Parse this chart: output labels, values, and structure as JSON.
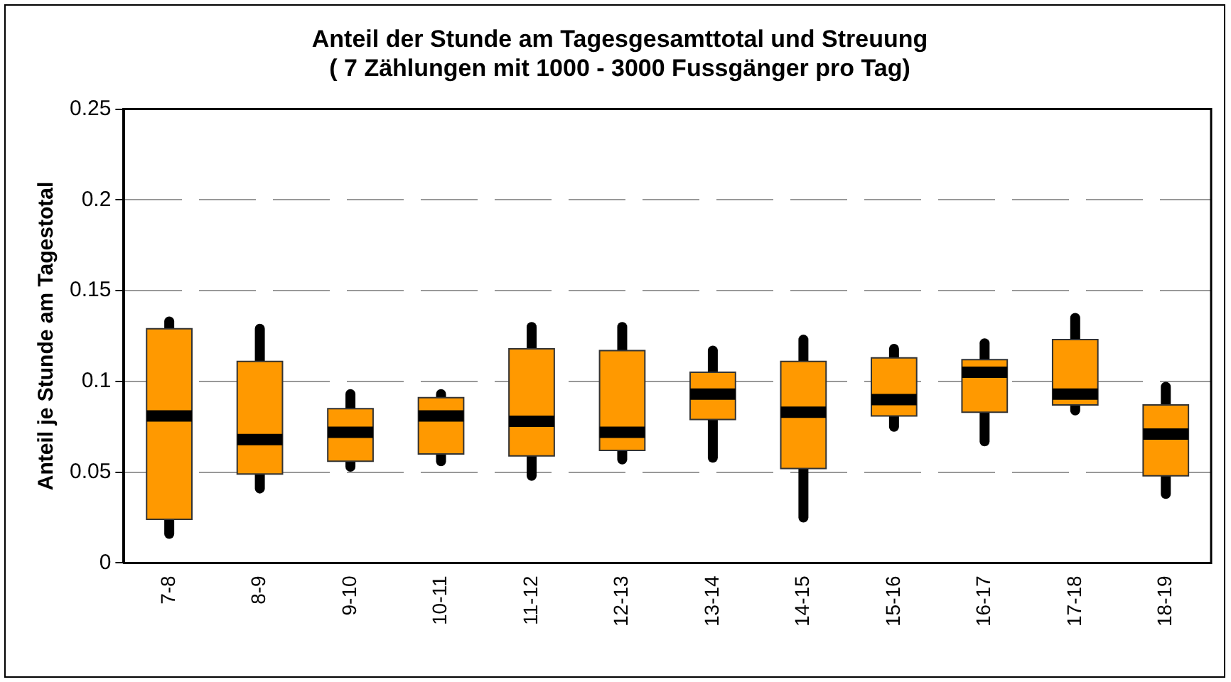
{
  "chart_data": {
    "type": "box",
    "title": "Anteil der Stunde am Tagesgesamttotal und Streuung",
    "subtitle": "( 7 Zählungen mit 1000 - 3000 Fussgänger pro Tag)",
    "ylabel": "Anteil je Stunde am Tagestotal",
    "categories": [
      "7-8",
      "8-9",
      "9-10",
      "10-11",
      "11-12",
      "12-13",
      "13-14",
      "14-15",
      "15-16",
      "16-17",
      "17-18",
      "18-19"
    ],
    "series": [
      {
        "color": "#ff9900",
        "boxes": [
          {
            "low": 0.016,
            "q1": 0.024,
            "median": 0.081,
            "q3": 0.129,
            "high": 0.133
          },
          {
            "low": 0.041,
            "q1": 0.049,
            "median": 0.068,
            "q3": 0.111,
            "high": 0.129
          },
          {
            "low": 0.053,
            "q1": 0.056,
            "median": 0.072,
            "q3": 0.085,
            "high": 0.093
          },
          {
            "low": 0.056,
            "q1": 0.06,
            "median": 0.081,
            "q3": 0.091,
            "high": 0.093
          },
          {
            "low": 0.048,
            "q1": 0.059,
            "median": 0.078,
            "q3": 0.118,
            "high": 0.13
          },
          {
            "low": 0.057,
            "q1": 0.062,
            "median": 0.072,
            "q3": 0.117,
            "high": 0.13
          },
          {
            "low": 0.058,
            "q1": 0.079,
            "median": 0.093,
            "q3": 0.105,
            "high": 0.117
          },
          {
            "low": 0.025,
            "q1": 0.052,
            "median": 0.083,
            "q3": 0.111,
            "high": 0.123
          },
          {
            "low": 0.075,
            "q1": 0.081,
            "median": 0.09,
            "q3": 0.113,
            "high": 0.118
          },
          {
            "low": 0.067,
            "q1": 0.083,
            "median": 0.105,
            "q3": 0.112,
            "high": 0.121
          },
          {
            "low": 0.084,
            "q1": 0.087,
            "median": 0.093,
            "q3": 0.123,
            "high": 0.135
          },
          {
            "low": 0.038,
            "q1": 0.048,
            "median": 0.071,
            "q3": 0.087,
            "high": 0.097
          }
        ]
      }
    ],
    "ylim": [
      0,
      0.25
    ],
    "yticks": [
      0,
      0.05,
      0.1,
      0.15,
      0.2,
      0.25
    ],
    "grid": "y",
    "legend": false
  }
}
